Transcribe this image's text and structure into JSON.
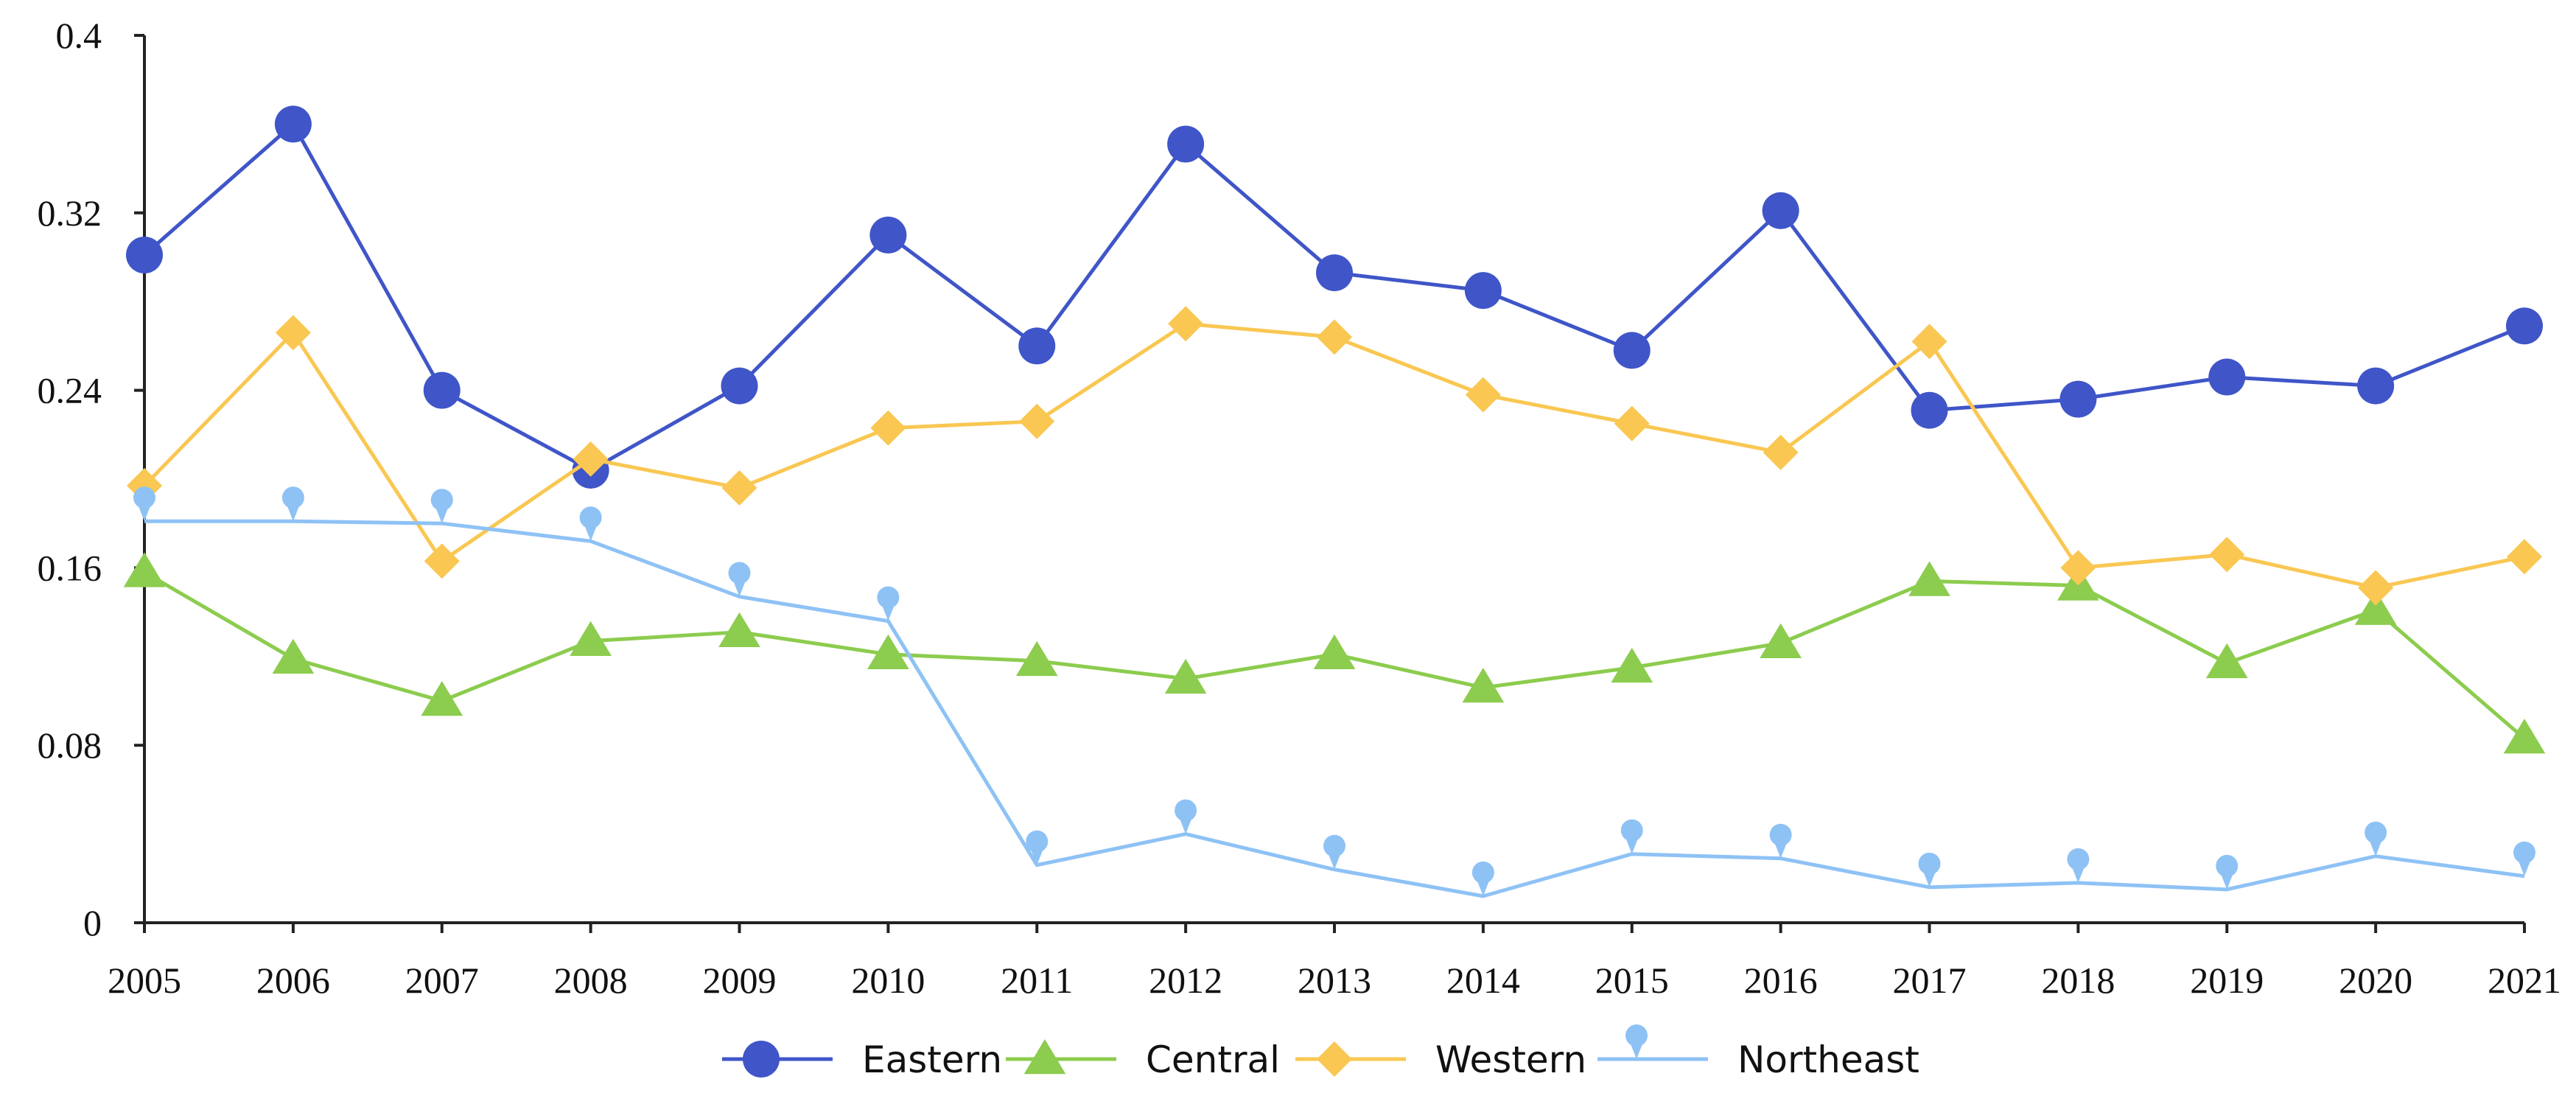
{
  "chart_data": {
    "type": "line",
    "title": "",
    "xlabel": "",
    "ylabel": "",
    "x": [
      "2005",
      "2006",
      "2007",
      "2008",
      "2009",
      "2010",
      "2011",
      "2012",
      "2013",
      "2014",
      "2015",
      "2016",
      "2017",
      "2018",
      "2019",
      "2020",
      "2021"
    ],
    "ylim": [
      0,
      0.4
    ],
    "yticks": [
      "0",
      "0.08",
      "0.16",
      "0.24",
      "0.32",
      "0.4"
    ],
    "grid": false,
    "legend_position": "bottom-center",
    "series": [
      {
        "name": "Eastern",
        "color": "#3f55c8",
        "marker": "circle",
        "values": [
          0.301,
          0.36,
          0.24,
          0.204,
          0.242,
          0.31,
          0.26,
          0.351,
          0.293,
          0.285,
          0.258,
          0.321,
          0.231,
          0.236,
          0.246,
          0.242,
          0.269
        ]
      },
      {
        "name": "Central",
        "color": "#8ccc4e",
        "marker": "triangle",
        "values": [
          0.158,
          0.119,
          0.1,
          0.127,
          0.131,
          0.121,
          0.118,
          0.11,
          0.121,
          0.106,
          0.115,
          0.126,
          0.154,
          0.152,
          0.117,
          0.141,
          0.083
        ]
      },
      {
        "name": "Western",
        "color": "#f9c752",
        "marker": "diamond",
        "values": [
          0.197,
          0.266,
          0.163,
          0.209,
          0.196,
          0.223,
          0.226,
          0.27,
          0.264,
          0.238,
          0.225,
          0.212,
          0.262,
          0.16,
          0.166,
          0.151,
          0.165
        ]
      },
      {
        "name": "Northeast",
        "color": "#8ec2f5",
        "marker": "pin",
        "values": [
          0.181,
          0.181,
          0.18,
          0.172,
          0.147,
          0.136,
          0.026,
          0.04,
          0.024,
          0.012,
          0.031,
          0.029,
          0.016,
          0.018,
          0.015,
          0.03,
          0.021
        ]
      }
    ]
  }
}
